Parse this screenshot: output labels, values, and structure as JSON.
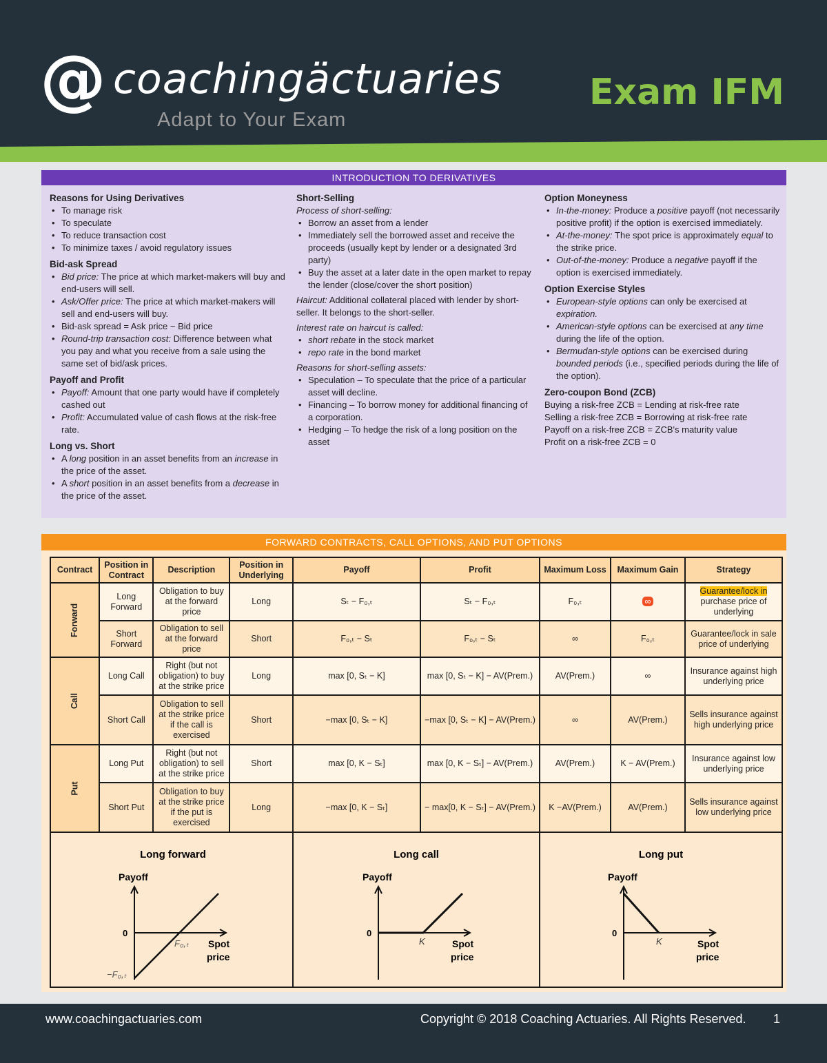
{
  "header": {
    "logo_at": "@",
    "logo_text": "coachingäctuaries",
    "tagline": "Adapt to Your Exam",
    "exam_title": "Exam IFM",
    "accent_color": "#8bc34a",
    "background_color": "#24303a"
  },
  "intro": {
    "title": "INTRODUCTION TO DERIVATIVES",
    "color": "#6a3bb5",
    "columns": [
      [
        {
          "type": "h",
          "text": "Reasons for Using Derivatives"
        },
        {
          "type": "ul",
          "items": [
            [
              {
                "t": "To manage risk"
              }
            ],
            [
              {
                "t": "To speculate"
              }
            ],
            [
              {
                "t": "To reduce transaction cost"
              }
            ],
            [
              {
                "t": "To minimize taxes / avoid regulatory issues"
              }
            ]
          ]
        },
        {
          "type": "h",
          "text": "Bid-ask Spread"
        },
        {
          "type": "ul",
          "items": [
            [
              {
                "t": "Bid price:",
                "i": true
              },
              {
                "t": " The price at which market-makers will buy and end-users will sell."
              }
            ],
            [
              {
                "t": "Ask/Offer price:",
                "i": true
              },
              {
                "t": " The price at which market-makers will sell and end-users will buy."
              }
            ],
            [
              {
                "t": "Bid-ask spread = Ask price − Bid price"
              }
            ],
            [
              {
                "t": "Round-trip transaction cost:",
                "i": true
              },
              {
                "t": " Difference between what you pay and what you receive from a sale using the same set of bid/ask prices."
              }
            ]
          ]
        },
        {
          "type": "h",
          "text": "Payoff and Profit"
        },
        {
          "type": "ul",
          "items": [
            [
              {
                "t": "Payoff:",
                "i": true
              },
              {
                "t": " Amount that one party would have if completely cashed out"
              }
            ],
            [
              {
                "t": "Profit:",
                "i": true
              },
              {
                "t": " Accumulated value of cash flows at the risk-free rate."
              }
            ]
          ]
        },
        {
          "type": "h",
          "text": "Long vs. Short"
        },
        {
          "type": "ul",
          "items": [
            [
              {
                "t": "A "
              },
              {
                "t": "long",
                "i": true
              },
              {
                "t": " position in an asset benefits from an "
              },
              {
                "t": "increase",
                "i": true
              },
              {
                "t": " in the price of the asset."
              }
            ],
            [
              {
                "t": "A "
              },
              {
                "t": "short",
                "i": true
              },
              {
                "t": " position in an asset benefits from a "
              },
              {
                "t": "decrease",
                "i": true
              },
              {
                "t": " in the price of the asset."
              }
            ]
          ]
        }
      ],
      [
        {
          "type": "h",
          "text": "Short-Selling"
        },
        {
          "type": "p",
          "segs": [
            {
              "t": "Process of short-selling:",
              "i": true
            }
          ],
          "tight": true
        },
        {
          "type": "ul",
          "items": [
            [
              {
                "t": "Borrow an asset from a lender"
              }
            ],
            [
              {
                "t": "Immediately sell the borrowed asset and receive the proceeds (usually kept by lender or a designated 3rd party)"
              }
            ],
            [
              {
                "t": "Buy the asset at a later date in the open market to repay the lender (close/cover the short position)"
              }
            ]
          ]
        },
        {
          "type": "p",
          "segs": [
            {
              "t": "Haircut:",
              "i": true
            },
            {
              "t": " Additional collateral placed with lender by short-seller. It belongs to the short-seller."
            }
          ]
        },
        {
          "type": "p",
          "segs": [
            {
              "t": "Interest rate on haircut is called:",
              "i": true
            }
          ],
          "tight": true
        },
        {
          "type": "ul",
          "items": [
            [
              {
                "t": "short rebate",
                "i": true
              },
              {
                "t": " in the stock market"
              }
            ],
            [
              {
                "t": "repo rate",
                "i": true
              },
              {
                "t": " in the bond market"
              }
            ]
          ]
        },
        {
          "type": "p",
          "segs": [
            {
              "t": "Reasons for short-selling assets:",
              "i": true
            }
          ],
          "tight": true
        },
        {
          "type": "ul",
          "items": [
            [
              {
                "t": "Speculation – To speculate that the price of a particular asset will decline."
              }
            ],
            [
              {
                "t": "Financing – To borrow money for additional financing of a corporation."
              }
            ],
            [
              {
                "t": "Hedging – To hedge the risk of a long position on the asset"
              }
            ]
          ]
        }
      ],
      [
        {
          "type": "h",
          "text": "Option Moneyness"
        },
        {
          "type": "ul",
          "items": [
            [
              {
                "t": "In-the-money:",
                "i": true
              },
              {
                "t": " Produce a "
              },
              {
                "t": "positive",
                "i": true
              },
              {
                "t": " payoff (not necessarily positive profit) if the option is exercised immediately."
              }
            ],
            [
              {
                "t": "At-the-money:",
                "i": true
              },
              {
                "t": " The spot price is approximately "
              },
              {
                "t": "equal",
                "i": true
              },
              {
                "t": " to the strike price."
              }
            ],
            [
              {
                "t": "Out-of-the-money:",
                "i": true
              },
              {
                "t": " Produce a "
              },
              {
                "t": "negative",
                "i": true
              },
              {
                "t": " payoff if the option is exercised immediately."
              }
            ]
          ]
        },
        {
          "type": "h",
          "text": "Option Exercise Styles"
        },
        {
          "type": "ul",
          "items": [
            [
              {
                "t": "European-style options",
                "i": true
              },
              {
                "t": " can only be exercised at "
              },
              {
                "t": "expiration.",
                "i": true
              }
            ],
            [
              {
                "t": "American-style options",
                "i": true
              },
              {
                "t": " can be exercised at "
              },
              {
                "t": "any time",
                "i": true
              },
              {
                "t": " during the life of the option."
              }
            ],
            [
              {
                "t": "Bermudan-style options",
                "i": true
              },
              {
                "t": " can be exercised during "
              },
              {
                "t": "bounded periods",
                "i": true
              },
              {
                "t": " (i.e., specified periods during the life of the option)."
              }
            ]
          ]
        },
        {
          "type": "h",
          "text": "Zero-coupon Bond (ZCB)"
        },
        {
          "type": "p",
          "segs": [
            {
              "t": "Buying a risk-free ZCB = Lending at risk-free rate"
            }
          ],
          "tight": true
        },
        {
          "type": "p",
          "segs": [
            {
              "t": "Selling a risk-free ZCB = Borrowing at risk-free rate"
            }
          ],
          "tight": true
        },
        {
          "type": "p",
          "segs": [
            {
              "t": "Payoff on a risk-free ZCB = ZCB's maturity value"
            }
          ],
          "tight": true
        },
        {
          "type": "p",
          "segs": [
            {
              "t": "Profit on a risk-free ZCB = 0"
            }
          ],
          "tight": true
        }
      ]
    ]
  },
  "contracts": {
    "title": "FORWARD CONTRACTS, CALL OPTIONS, AND PUT OPTIONS",
    "color": "#f7941d",
    "headers": [
      "Contract",
      "Position in Contract",
      "Description",
      "Position in Underlying",
      "Payoff",
      "Profit",
      "Maximum Loss",
      "Maximum Gain",
      "Strategy"
    ],
    "groups": [
      {
        "name": "Forward",
        "rows": [
          {
            "position": "Long Forward",
            "description": "Obligation to buy at the forward price",
            "underlying": "Long",
            "payoff": "Sₜ − F₀,ₜ",
            "profit": "Sₜ − F₀,ₜ",
            "max_loss": "F₀,ₜ",
            "max_gain": "∞",
            "max_gain_highlight": true,
            "strategy_hl": "Guarantee/lock in",
            "strategy": " purchase price of underlying"
          },
          {
            "position": "Short Forward",
            "description": "Obligation to sell at the forward price",
            "underlying": "Short",
            "payoff": "F₀,ₜ − Sₜ",
            "profit": "F₀,ₜ − Sₜ",
            "max_loss": "∞",
            "max_gain": "F₀,ₜ",
            "strategy": "Guarantee/lock in sale price of underlying"
          }
        ]
      },
      {
        "name": "Call",
        "rows": [
          {
            "position": "Long Call",
            "description": "Right (but not obligation) to buy at the strike price",
            "underlying": "Long",
            "payoff": "max [0, Sₜ − K]",
            "profit": "max [0, Sₜ − K] − AV(Prem.)",
            "max_loss": "AV(Prem.)",
            "max_gain": "∞",
            "strategy": "Insurance against high underlying price"
          },
          {
            "position": "Short Call",
            "description": "Obligation to sell at the strike price if the call is exercised",
            "underlying": "Short",
            "payoff": "−max [0, Sₜ − K]",
            "profit": "−max [0, Sₜ − K] − AV(Prem.)",
            "max_loss": "∞",
            "max_gain": "AV(Prem.)",
            "strategy": "Sells insurance against high underlying price"
          }
        ]
      },
      {
        "name": "Put",
        "rows": [
          {
            "position": "Long Put",
            "description": "Right (but not obligation) to sell at the strike price",
            "underlying": "Short",
            "payoff": "max [0, K − Sₜ]",
            "profit": "max [0, K − Sₜ] − AV(Prem.)",
            "max_loss": "AV(Prem.)",
            "max_gain": "K − AV(Prem.)",
            "strategy": "Insurance against low underlying price"
          },
          {
            "position": "Short Put",
            "description": "Obligation to buy at the strike price if the put is exercised",
            "underlying": "Long",
            "payoff": "−max [0, K − Sₜ]",
            "profit": "− max[0, K − Sₜ] − AV(Prem.)",
            "max_loss": "K −AV(Prem.)",
            "max_gain": "AV(Prem.)",
            "strategy": "Sells insurance against low underlying price"
          }
        ]
      }
    ],
    "diagrams": [
      {
        "title": "Long forward",
        "y_label": "Payoff",
        "x_label_1": "Spot",
        "x_label_2": "price",
        "zero": "0",
        "mark": "F₀,ₜ",
        "neg_mark": "−F₀,ₜ"
      },
      {
        "title": "Long call",
        "y_label": "Payoff",
        "x_label_1": "Spot",
        "x_label_2": "price",
        "zero": "0",
        "mark": "K"
      },
      {
        "title": "Long put",
        "y_label": "Payoff",
        "x_label_1": "Spot",
        "x_label_2": "price",
        "zero": "0",
        "mark": "K"
      }
    ]
  },
  "footer": {
    "url": "www.coachingactuaries.com",
    "copyright": "Copyright © 2018 Coaching Actuaries. All Rights Reserved.",
    "page": "1"
  }
}
